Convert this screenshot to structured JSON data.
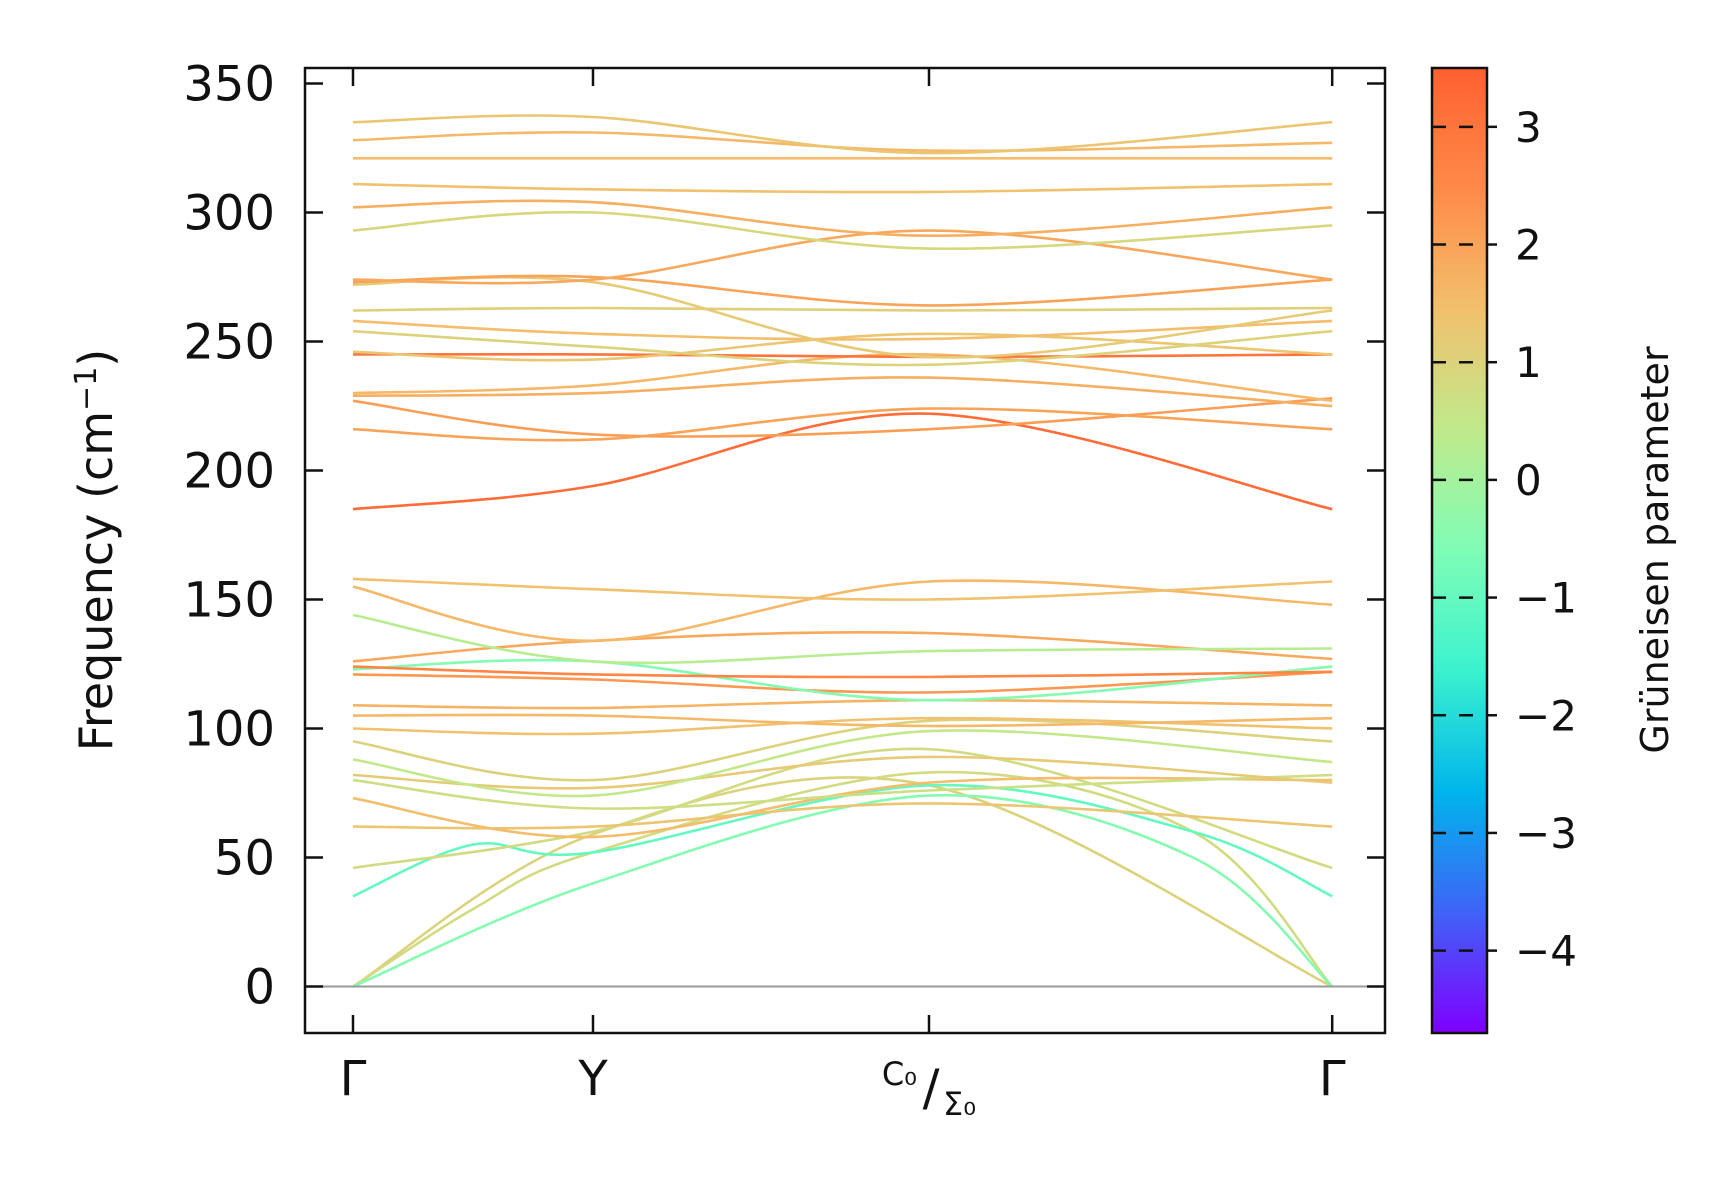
{
  "chart_data": {
    "type": "line",
    "title": "",
    "xlabel": "",
    "ylabel_main": "Frequency (cm",
    "ylabel_sup": "−1",
    "ylabel_close": ")",
    "ylim": [
      -18,
      356
    ],
    "yticks": [
      0,
      50,
      100,
      150,
      200,
      250,
      300,
      350
    ],
    "xticks": [
      {
        "pos": 0.0,
        "label": "Γ"
      },
      {
        "pos": 1.0,
        "label": "Y"
      },
      {
        "pos": 2.4,
        "label_top": "C₀",
        "label_sub": "Σ₀"
      },
      {
        "pos": 4.08,
        "label": "Γ"
      }
    ],
    "xlim": [
      -0.2,
      4.3
    ],
    "zero_line": 0,
    "colorbar": {
      "label": "Grüneisen parameter",
      "range": [
        -4.7,
        3.5
      ],
      "ticks": [
        3,
        2,
        1,
        0,
        -1,
        -2,
        -3,
        -4
      ],
      "tick_labels": [
        "3",
        "2",
        "1",
        "0",
        "−1",
        "−2",
        "−3",
        "−4"
      ],
      "colormap": [
        "#7f00ff",
        "#3f63f7",
        "#00b5eb",
        "#3bf2cf",
        "#7ffdb6",
        "#c0ea8c",
        "#f2c06d",
        "#ff8a48",
        "#ff6030"
      ]
    },
    "series": [
      {
        "x": [
          0,
          1,
          2.4,
          4.08
        ],
        "y": [
          0,
          59,
          78,
          0
        ],
        "g": 1.0
      },
      {
        "x": [
          0,
          0.5,
          1,
          2.4,
          3.5,
          4.08
        ],
        "y": [
          0,
          30,
          52,
          83,
          60,
          0
        ],
        "g": 0.8
      },
      {
        "x": [
          0,
          1,
          2.4,
          3.5,
          4.08
        ],
        "y": [
          0,
          40,
          74,
          50,
          0
        ],
        "g": -0.5
      },
      {
        "x": [
          0,
          0.5,
          1,
          2.4,
          3.5,
          4.08
        ],
        "y": [
          35,
          55,
          52,
          78,
          60,
          35
        ],
        "g": -1.0
      },
      {
        "x": [
          0,
          1,
          2.4,
          4.08
        ],
        "y": [
          46,
          60,
          92,
          46
        ],
        "g": 0.8
      },
      {
        "x": [
          0,
          1,
          2.4,
          4.08
        ],
        "y": [
          62,
          62,
          71,
          62
        ],
        "g": 1.3
      },
      {
        "x": [
          0,
          1,
          2.4,
          4.08
        ],
        "y": [
          73,
          58,
          79,
          80
        ],
        "g": 1.5
      },
      {
        "x": [
          0,
          1,
          2.4,
          4.08
        ],
        "y": [
          80,
          69,
          76,
          82
        ],
        "g": 0.7
      },
      {
        "x": [
          0,
          1,
          2.4,
          4.08
        ],
        "y": [
          82,
          77,
          89,
          79
        ],
        "g": 1.2
      },
      {
        "x": [
          0,
          1,
          2.4,
          4.08
        ],
        "y": [
          88,
          74,
          99,
          87
        ],
        "g": 0.5
      },
      {
        "x": [
          0,
          1,
          2.4,
          4.08
        ],
        "y": [
          95,
          80,
          103,
          95
        ],
        "g": 1.0
      },
      {
        "x": [
          0,
          1,
          2.4,
          4.08
        ],
        "y": [
          100,
          98,
          104,
          100
        ],
        "g": 1.4
      },
      {
        "x": [
          0,
          1,
          2.4,
          4.08
        ],
        "y": [
          105,
          105,
          101,
          104
        ],
        "g": 1.6
      },
      {
        "x": [
          0,
          1,
          2.4,
          4.08
        ],
        "y": [
          109,
          108,
          111,
          109
        ],
        "g": 1.7
      },
      {
        "x": [
          0,
          1,
          2.4,
          4.08
        ],
        "y": [
          121,
          119,
          114,
          122
        ],
        "g": 2.2
      },
      {
        "x": [
          0,
          1,
          2.4,
          4.08
        ],
        "y": [
          123,
          126,
          111,
          124
        ],
        "g": -0.5
      },
      {
        "x": [
          0,
          1,
          2.4,
          4.08
        ],
        "y": [
          124,
          121,
          120,
          122
        ],
        "g": 2.6
      },
      {
        "x": [
          0,
          1,
          2.4,
          4.08
        ],
        "y": [
          126,
          134,
          137,
          127
        ],
        "g": 1.9
      },
      {
        "x": [
          0,
          1,
          2.4,
          4.08
        ],
        "y": [
          144,
          126,
          130,
          131
        ],
        "g": 0.3
      },
      {
        "x": [
          0,
          1,
          2.4,
          4.08
        ],
        "y": [
          155,
          134,
          157,
          148
        ],
        "g": 1.6
      },
      {
        "x": [
          0,
          1,
          2.4,
          4.08
        ],
        "y": [
          158,
          154,
          150,
          157
        ],
        "g": 1.4
      },
      {
        "x": [
          0,
          1,
          2.4,
          4.08
        ],
        "y": [
          185,
          194,
          222,
          185
        ],
        "g": 3.2
      },
      {
        "x": [
          0,
          1,
          2.4,
          4.08
        ],
        "y": [
          216,
          212,
          224,
          216
        ],
        "g": 2.0
      },
      {
        "x": [
          0,
          1,
          2.4,
          4.08
        ],
        "y": [
          227,
          214,
          216,
          228
        ],
        "g": 2.1
      },
      {
        "x": [
          0,
          1,
          2.4,
          4.08
        ],
        "y": [
          229,
          230,
          236,
          225
        ],
        "g": 1.8
      },
      {
        "x": [
          0,
          1,
          2.4,
          4.08
        ],
        "y": [
          230,
          233,
          245,
          227
        ],
        "g": 1.6
      },
      {
        "x": [
          0,
          1,
          2.4,
          4.08
        ],
        "y": [
          245,
          245,
          244,
          245
        ],
        "g": 3.0
      },
      {
        "x": [
          0,
          1,
          2.4,
          4.08
        ],
        "y": [
          246,
          243,
          253,
          245
        ],
        "g": 1.3
      },
      {
        "x": [
          0,
          1,
          2.4,
          4.08
        ],
        "y": [
          254,
          248,
          241,
          254
        ],
        "g": 1.0
      },
      {
        "x": [
          0,
          1,
          2.4,
          4.08
        ],
        "y": [
          258,
          253,
          251,
          258
        ],
        "g": 1.5
      },
      {
        "x": [
          0,
          1,
          2.4,
          4.08
        ],
        "y": [
          262,
          263,
          262,
          263
        ],
        "g": 1.1
      },
      {
        "x": [
          0,
          1,
          2.4,
          4.08
        ],
        "y": [
          272,
          273,
          244,
          262
        ],
        "g": 1.2
      },
      {
        "x": [
          0,
          1,
          2.4,
          4.08
        ],
        "y": [
          273,
          275,
          264,
          274
        ],
        "g": 2.0
      },
      {
        "x": [
          0,
          1,
          2.4,
          4.08
        ],
        "y": [
          274,
          274,
          293,
          274
        ],
        "g": 1.9
      },
      {
        "x": [
          0,
          1,
          2.4,
          4.08
        ],
        "y": [
          293,
          300,
          286,
          295
        ],
        "g": 0.9
      },
      {
        "x": [
          0,
          1,
          2.4,
          4.08
        ],
        "y": [
          302,
          304,
          291,
          302
        ],
        "g": 1.8
      },
      {
        "x": [
          0,
          1,
          2.4,
          4.08
        ],
        "y": [
          311,
          309,
          308,
          311
        ],
        "g": 1.4
      },
      {
        "x": [
          0,
          1,
          2.4,
          4.08
        ],
        "y": [
          321,
          321,
          321,
          321
        ],
        "g": 1.5
      },
      {
        "x": [
          0,
          1,
          2.4,
          4.08
        ],
        "y": [
          328,
          331,
          324,
          327
        ],
        "g": 1.6
      },
      {
        "x": [
          0,
          1,
          2.4,
          4.08
        ],
        "y": [
          335,
          337,
          323,
          335
        ],
        "g": 1.3
      }
    ]
  }
}
